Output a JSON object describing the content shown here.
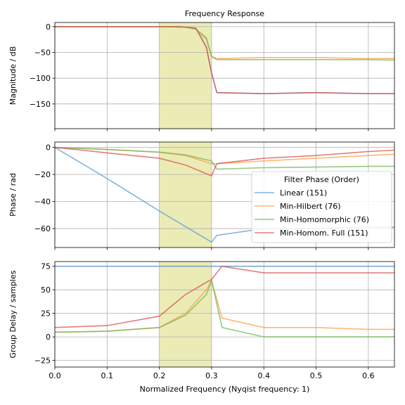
{
  "chart_data": [
    {
      "type": "line",
      "title": "Frequency Response",
      "xlabel": "",
      "ylabel": "Magnitude / dB",
      "xlim": [
        0.0,
        0.65
      ],
      "ylim": [
        -198,
        8
      ],
      "yticks": [
        0,
        -50,
        -100,
        -150
      ],
      "xticks": [
        0.0,
        0.1,
        0.2,
        0.3,
        0.4,
        0.5,
        0.6
      ],
      "grid": true,
      "shaded_band": {
        "x0": 0.2,
        "x1": 0.3,
        "color": "#e8e8a8"
      },
      "series": [
        {
          "name": "Linear (151)",
          "color": "#5b9bd5",
          "x": [
            0.0,
            0.1,
            0.2,
            0.24,
            0.27,
            0.29,
            0.3,
            0.31,
            0.4,
            0.5,
            0.6,
            0.65
          ],
          "y": [
            0,
            0,
            0,
            0,
            -3,
            -40,
            -90,
            -128,
            -130,
            -128,
            -130,
            -130
          ]
        },
        {
          "name": "Min-Hilbert (76)",
          "color": "#ff9f45",
          "x": [
            0.0,
            0.1,
            0.2,
            0.25,
            0.27,
            0.29,
            0.3,
            0.31,
            0.4,
            0.5,
            0.6,
            0.65
          ],
          "y": [
            0,
            0,
            0,
            -1,
            -5,
            -25,
            -58,
            -62,
            -60,
            -60,
            -62,
            -62
          ]
        },
        {
          "name": "Min-Homomorphic (76)",
          "color": "#6fb85a",
          "x": [
            0.0,
            0.1,
            0.2,
            0.25,
            0.27,
            0.29,
            0.3,
            0.31,
            0.4,
            0.5,
            0.6,
            0.65
          ],
          "y": [
            0,
            0,
            0,
            -1,
            -5,
            -22,
            -58,
            -64,
            -64,
            -64,
            -64,
            -65
          ]
        },
        {
          "name": "Min-Homom. Full (151)",
          "color": "#d9534f",
          "x": [
            0.0,
            0.1,
            0.2,
            0.24,
            0.27,
            0.29,
            0.3,
            0.31,
            0.4,
            0.5,
            0.6,
            0.65
          ],
          "y": [
            0,
            0,
            0,
            0,
            -3,
            -40,
            -90,
            -128,
            -130,
            -128,
            -130,
            -130
          ]
        }
      ]
    },
    {
      "type": "line",
      "title": "",
      "xlabel": "",
      "ylabel": "Phase / rad",
      "xlim": [
        0.0,
        0.65
      ],
      "ylim": [
        -74,
        4
      ],
      "yticks": [
        0,
        -20,
        -40,
        -60
      ],
      "xticks": [
        0.0,
        0.1,
        0.2,
        0.3,
        0.4,
        0.5,
        0.6
      ],
      "grid": true,
      "shaded_band": {
        "x0": 0.2,
        "x1": 0.3,
        "color": "#e8e8a8"
      },
      "legend": {
        "title": "Filter Phase (Order)",
        "placement": "center-right",
        "entries": [
          "Linear (151)",
          "Min-Hilbert (76)",
          "Min-Homomorphic (76)",
          "Min-Homom. Full (151)"
        ]
      },
      "series": [
        {
          "name": "Linear (151)",
          "color": "#5b9bd5",
          "x": [
            0.0,
            0.1,
            0.2,
            0.3,
            0.31,
            0.4,
            0.5,
            0.6,
            0.65
          ],
          "y": [
            0,
            -23,
            -47,
            -70,
            -65,
            -60,
            -60,
            -59,
            -59
          ]
        },
        {
          "name": "Min-Hilbert (76)",
          "color": "#ff9f45",
          "x": [
            0.0,
            0.1,
            0.2,
            0.25,
            0.3,
            0.31,
            0.4,
            0.5,
            0.6,
            0.65
          ],
          "y": [
            0,
            -1.5,
            -3.5,
            -6,
            -12,
            -12,
            -10,
            -8,
            -6,
            -5
          ]
        },
        {
          "name": "Min-Homomorphic (76)",
          "color": "#6fb85a",
          "x": [
            0.0,
            0.1,
            0.2,
            0.25,
            0.3,
            0.31,
            0.4,
            0.5,
            0.6,
            0.65
          ],
          "y": [
            0,
            -1.5,
            -3.5,
            -5.5,
            -10,
            -16,
            -15,
            -14.5,
            -14,
            -14
          ]
        },
        {
          "name": "Min-Homom. Full (151)",
          "color": "#d9534f",
          "x": [
            0.0,
            0.05,
            0.1,
            0.2,
            0.25,
            0.3,
            0.31,
            0.4,
            0.5,
            0.6,
            0.65
          ],
          "y": [
            0,
            -2,
            -4,
            -8,
            -13,
            -21,
            -12,
            -8,
            -6,
            -3,
            -2
          ]
        }
      ]
    },
    {
      "type": "line",
      "title": "",
      "xlabel": "Normalized Frequency (Nyqist frequency: 1)",
      "ylabel": "Group Delay / samples",
      "xlim": [
        0.0,
        0.65
      ],
      "ylim": [
        -32,
        80
      ],
      "yticks": [
        75,
        50,
        25,
        0,
        -25
      ],
      "xticks": [
        0.0,
        0.1,
        0.2,
        0.3,
        0.4,
        0.5,
        0.6
      ],
      "grid": true,
      "shaded_band": {
        "x0": 0.2,
        "x1": 0.3,
        "color": "#e8e8a8"
      },
      "series": [
        {
          "name": "Linear (151)",
          "color": "#5b9bd5",
          "x": [
            0.0,
            0.3,
            0.65
          ],
          "y": [
            75,
            75,
            75
          ]
        },
        {
          "name": "Min-Hilbert (76)",
          "color": "#ff9f45",
          "x": [
            0.0,
            0.1,
            0.2,
            0.25,
            0.29,
            0.3,
            0.32,
            0.4,
            0.5,
            0.6,
            0.65
          ],
          "y": [
            5,
            6,
            10,
            25,
            50,
            60,
            20,
            10,
            10,
            8,
            8
          ]
        },
        {
          "name": "Min-Homomorphic (76)",
          "color": "#6fb85a",
          "x": [
            0.0,
            0.1,
            0.2,
            0.25,
            0.29,
            0.3,
            0.32,
            0.4,
            0.5,
            0.6,
            0.65
          ],
          "y": [
            5,
            6,
            10,
            23,
            45,
            60,
            10,
            0,
            0,
            0,
            0
          ]
        },
        {
          "name": "Min-Homom. Full (151)",
          "color": "#d9534f",
          "x": [
            0.0,
            0.1,
            0.2,
            0.25,
            0.29,
            0.3,
            0.32,
            0.4,
            0.5,
            0.6,
            0.65
          ],
          "y": [
            10,
            12,
            22,
            45,
            58,
            61,
            75,
            68,
            68,
            68,
            68
          ]
        }
      ]
    }
  ]
}
